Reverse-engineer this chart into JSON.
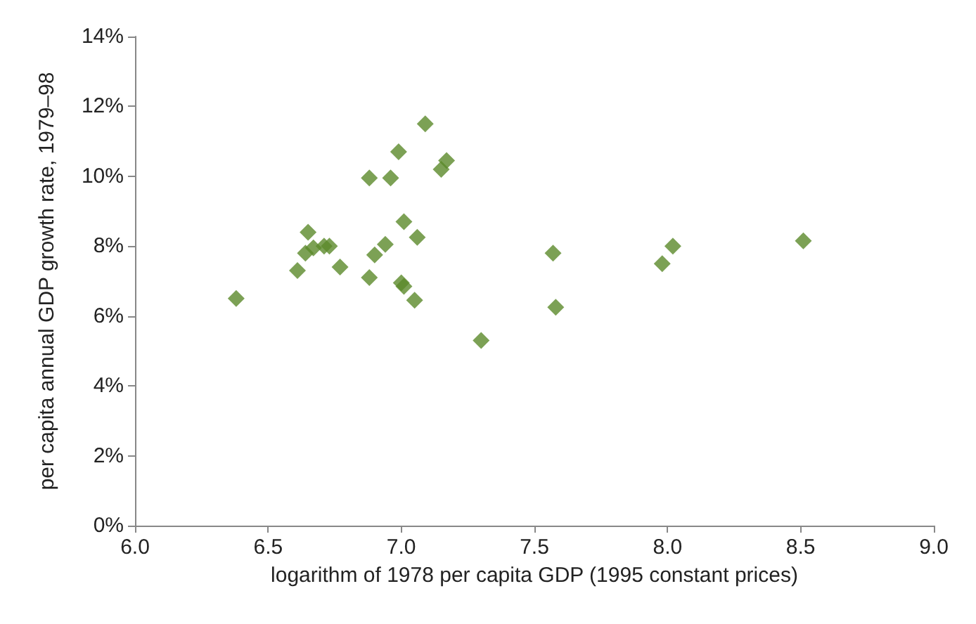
{
  "chart_data": {
    "type": "scatter",
    "xlabel": "logarithm of 1978 per capita GDP (1995 constant prices)",
    "ylabel": "per capita annual GDP growth rate, 1979–98",
    "x": [
      7.09,
      6.99,
      7.17,
      7.15,
      6.88,
      6.96,
      7.01,
      7.06,
      6.94,
      6.9,
      6.65,
      6.71,
      6.73,
      6.64,
      6.67,
      6.61,
      6.77,
      6.88,
      7.0,
      7.01,
      7.05,
      6.38,
      7.3,
      7.57,
      7.58,
      8.02,
      7.98,
      8.51
    ],
    "series": [
      {
        "color": "#5b8a2b",
        "values": [
          11.5,
          10.7,
          10.45,
          10.2,
          9.95,
          9.95,
          8.7,
          8.25,
          8.05,
          7.75,
          8.4,
          8.0,
          8.0,
          7.8,
          7.95,
          7.3,
          7.4,
          7.1,
          6.95,
          6.85,
          6.45,
          6.5,
          5.3,
          7.8,
          6.25,
          8.0,
          7.5,
          8.15
        ]
      }
    ],
    "xlim": [
      6,
      9
    ],
    "xticks": [
      {
        "value": 6,
        "label": "6.0"
      },
      {
        "value": 6.5,
        "label": "6.5"
      },
      {
        "value": 7,
        "label": "7.0"
      },
      {
        "value": 7.5,
        "label": "7.5"
      },
      {
        "value": 8,
        "label": "8.0"
      },
      {
        "value": 8.5,
        "label": "8.5"
      },
      {
        "value": 9,
        "label": "9.0"
      }
    ],
    "ylim": [
      0,
      14
    ],
    "yticks": [
      {
        "value": 0,
        "label": "0%"
      },
      {
        "value": 2,
        "label": "2%"
      },
      {
        "value": 4,
        "label": "4%"
      },
      {
        "value": 6,
        "label": "6%"
      },
      {
        "value": 8,
        "label": "8%"
      },
      {
        "value": 10,
        "label": "10%"
      },
      {
        "value": 12,
        "label": "12%"
      },
      {
        "value": 14,
        "label": "14%"
      }
    ],
    "grid": false,
    "marker": "diamond"
  }
}
